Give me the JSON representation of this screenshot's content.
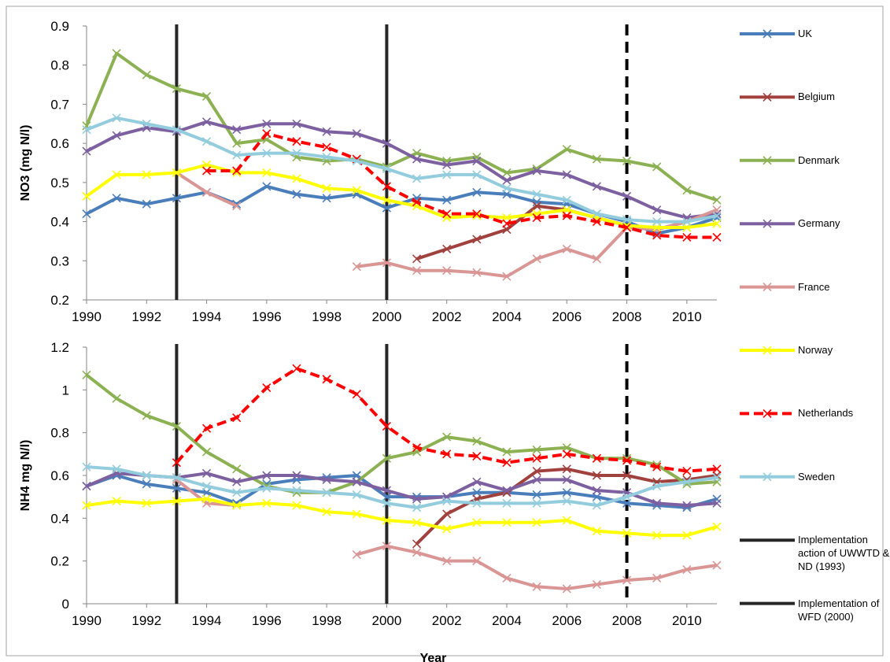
{
  "chart_data": [
    {
      "type": "line",
      "ylabel": "NO3 (mg N/l)",
      "x": [
        1990,
        1991,
        1992,
        1993,
        1994,
        1995,
        1996,
        1997,
        1998,
        1999,
        2000,
        2001,
        2002,
        2003,
        2004,
        2005,
        2006,
        2007,
        2008,
        2009,
        2010,
        2011
      ],
      "xlim": [
        1990,
        2011
      ],
      "xticks": [
        1990,
        1992,
        1994,
        1996,
        1998,
        2000,
        2002,
        2004,
        2006,
        2008,
        2010
      ],
      "ylim": [
        0.2,
        0.9
      ],
      "yticks": [
        0.2,
        0.3,
        0.4,
        0.5,
        0.6,
        0.7,
        0.8,
        0.9
      ],
      "legend": "right",
      "markers": [
        {
          "x": 1993,
          "name": "Implementation action of UWWTD & ND (1993)",
          "style": "solid",
          "color": "#262626"
        },
        {
          "x": 2000,
          "name": "Implementation of WFD (2000)",
          "style": "solid",
          "color": "#262626"
        },
        {
          "x": 2008,
          "style": "dashed",
          "color": "#000000"
        }
      ],
      "series": [
        {
          "name": "UK",
          "color": "#4a7ebb",
          "linestyle": "solid",
          "values": [
            0.42,
            0.46,
            0.445,
            0.46,
            0.475,
            0.445,
            0.49,
            0.47,
            0.46,
            0.47,
            0.435,
            0.46,
            0.455,
            0.475,
            0.47,
            0.45,
            0.445,
            0.42,
            0.4,
            0.37,
            0.385,
            0.41
          ]
        },
        {
          "name": "Belgium",
          "color": "#a0413d",
          "linestyle": "solid",
          "values": [
            null,
            null,
            null,
            null,
            null,
            null,
            null,
            null,
            null,
            null,
            null,
            0.305,
            0.33,
            0.355,
            0.38,
            0.44,
            0.43,
            0.41,
            0.39,
            0.38,
            0.4,
            0.42
          ]
        },
        {
          "name": "Denmark",
          "color": "#8cb153",
          "linestyle": "solid",
          "values": [
            0.645,
            0.83,
            0.775,
            0.74,
            0.72,
            0.6,
            0.61,
            0.565,
            0.555,
            0.56,
            0.54,
            0.575,
            0.555,
            0.565,
            0.525,
            0.535,
            0.585,
            0.56,
            0.555,
            0.54,
            0.48,
            0.455
          ]
        },
        {
          "name": "Germany",
          "color": "#7d60a0",
          "linestyle": "solid",
          "values": [
            0.58,
            0.62,
            0.64,
            0.63,
            0.655,
            0.635,
            0.65,
            0.65,
            0.63,
            0.625,
            0.6,
            0.56,
            0.545,
            0.555,
            0.505,
            0.53,
            0.52,
            0.49,
            0.465,
            0.43,
            0.41,
            0.42
          ]
        },
        {
          "name": "France",
          "color": "#d99694",
          "linestyle": "solid",
          "values": [
            null,
            null,
            null,
            0.525,
            0.475,
            0.44,
            null,
            null,
            null,
            0.285,
            0.295,
            0.275,
            0.275,
            0.27,
            0.26,
            0.305,
            0.33,
            0.305,
            0.385,
            0.38,
            0.4,
            0.43
          ]
        },
        {
          "name": "Norway",
          "color": "#ffff00",
          "linestyle": "solid",
          "values": [
            0.465,
            0.52,
            0.52,
            0.525,
            0.545,
            0.525,
            0.525,
            0.51,
            0.485,
            0.48,
            0.455,
            0.44,
            0.41,
            0.415,
            0.41,
            0.42,
            0.43,
            0.41,
            0.39,
            0.385,
            0.385,
            0.395
          ]
        },
        {
          "name": "Netherlands",
          "color": "#ff0000",
          "linestyle": "dashed",
          "values": [
            null,
            null,
            null,
            null,
            0.53,
            0.53,
            0.625,
            0.605,
            0.59,
            0.56,
            0.49,
            0.45,
            0.42,
            0.42,
            0.395,
            0.41,
            0.415,
            0.4,
            0.385,
            0.365,
            0.36,
            0.36
          ]
        },
        {
          "name": "Sweden",
          "color": "#93cddd",
          "linestyle": "solid",
          "values": [
            0.635,
            0.665,
            0.65,
            0.635,
            0.605,
            0.57,
            0.575,
            0.575,
            0.565,
            0.555,
            0.535,
            0.51,
            0.52,
            0.52,
            0.485,
            0.47,
            0.455,
            0.42,
            0.405,
            0.4,
            0.4,
            0.415
          ]
        }
      ]
    },
    {
      "type": "line",
      "ylabel": "NH4 mg N/l)",
      "xlabel": "Year",
      "x": [
        1990,
        1991,
        1992,
        1993,
        1994,
        1995,
        1996,
        1997,
        1998,
        1999,
        2000,
        2001,
        2002,
        2003,
        2004,
        2005,
        2006,
        2007,
        2008,
        2009,
        2010,
        2011
      ],
      "xlim": [
        1990,
        2011
      ],
      "xticks": [
        1990,
        1992,
        1994,
        1996,
        1998,
        2000,
        2002,
        2004,
        2006,
        2008,
        2010
      ],
      "ylim": [
        0,
        1.2
      ],
      "yticks": [
        0,
        0.2,
        0.4,
        0.6,
        0.8,
        1,
        1.2
      ],
      "markers": [
        {
          "x": 1993,
          "style": "solid",
          "color": "#262626"
        },
        {
          "x": 2000,
          "style": "solid",
          "color": "#262626"
        },
        {
          "x": 2008,
          "style": "dashed",
          "color": "#000000"
        }
      ],
      "series": [
        {
          "color": "#4a7ebb",
          "linestyle": "solid",
          "values": [
            0.55,
            0.6,
            0.56,
            0.54,
            0.52,
            0.47,
            0.56,
            0.58,
            0.59,
            0.6,
            0.5,
            0.5,
            0.5,
            0.52,
            0.52,
            0.51,
            0.52,
            0.5,
            0.47,
            0.46,
            0.45,
            0.49
          ]
        },
        {
          "color": "#a0413d",
          "linestyle": "solid",
          "values": [
            null,
            null,
            null,
            null,
            null,
            null,
            null,
            null,
            null,
            null,
            null,
            0.28,
            0.42,
            0.49,
            0.52,
            0.62,
            0.63,
            0.6,
            0.6,
            0.57,
            0.58,
            0.6
          ]
        },
        {
          "color": "#8cb153",
          "linestyle": "solid",
          "values": [
            1.07,
            0.96,
            0.88,
            0.83,
            0.71,
            0.63,
            0.55,
            0.52,
            0.52,
            0.57,
            0.68,
            0.71,
            0.78,
            0.76,
            0.71,
            0.72,
            0.73,
            0.68,
            0.68,
            0.65,
            0.56,
            0.57
          ]
        },
        {
          "color": "#7d60a0",
          "linestyle": "solid",
          "values": [
            0.55,
            0.61,
            0.6,
            0.59,
            0.61,
            0.57,
            0.6,
            0.6,
            0.58,
            0.57,
            0.53,
            0.49,
            0.5,
            0.57,
            0.53,
            0.58,
            0.58,
            0.53,
            0.52,
            0.47,
            0.46,
            0.47
          ]
        },
        {
          "color": "#d99694",
          "linestyle": "solid",
          "values": [
            null,
            null,
            null,
            0.58,
            0.47,
            0.46,
            null,
            null,
            null,
            0.23,
            0.27,
            0.24,
            0.2,
            0.2,
            0.12,
            0.08,
            0.07,
            0.09,
            0.11,
            0.12,
            0.16,
            0.18
          ]
        },
        {
          "color": "#ffff00",
          "linestyle": "solid",
          "values": [
            0.46,
            0.48,
            0.47,
            0.48,
            0.49,
            0.46,
            0.47,
            0.46,
            0.43,
            0.42,
            0.39,
            0.38,
            0.35,
            0.38,
            0.38,
            0.38,
            0.39,
            0.34,
            0.33,
            0.32,
            0.32,
            0.36
          ]
        },
        {
          "color": "#ff0000",
          "linestyle": "dashed",
          "values": [
            null,
            null,
            null,
            0.66,
            0.82,
            0.87,
            1.01,
            1.1,
            1.05,
            0.98,
            0.83,
            0.73,
            0.7,
            0.69,
            0.66,
            0.68,
            0.7,
            0.68,
            0.67,
            0.64,
            0.62,
            0.63
          ]
        },
        {
          "color": "#93cddd",
          "linestyle": "solid",
          "values": [
            0.64,
            0.63,
            0.6,
            0.59,
            0.55,
            0.52,
            0.54,
            0.53,
            0.52,
            0.51,
            0.47,
            0.45,
            0.48,
            0.47,
            0.47,
            0.47,
            0.48,
            0.46,
            0.5,
            0.55,
            0.57,
            0.59
          ]
        }
      ]
    }
  ]
}
